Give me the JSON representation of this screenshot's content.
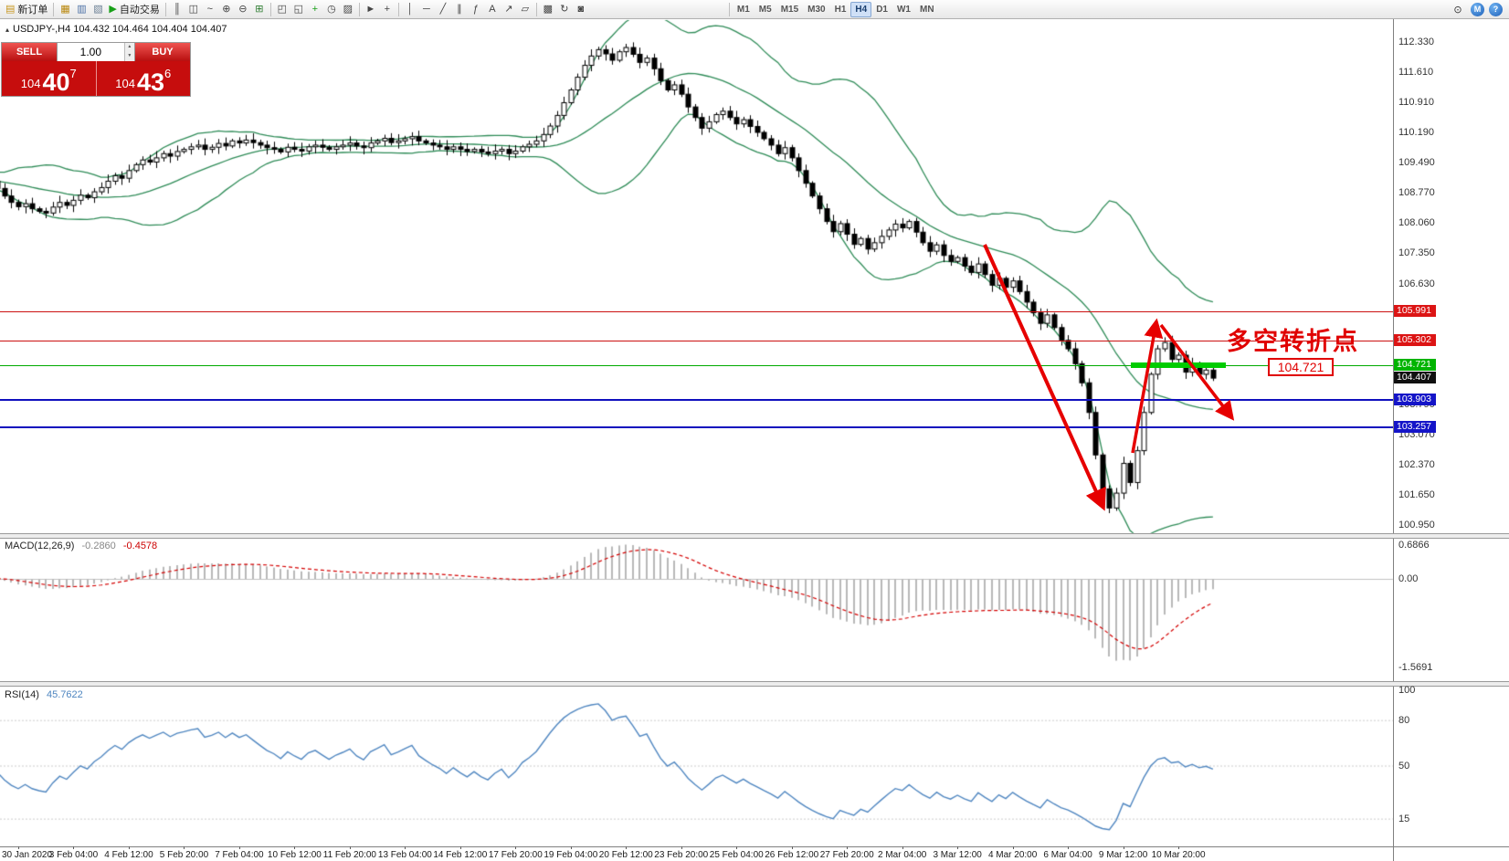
{
  "toolbar": {
    "groups": [
      {
        "name": "orders",
        "items": [
          {
            "name": "new-order",
            "glyph": "▤",
            "label": "新订单",
            "color": "#c8961e"
          }
        ]
      },
      {
        "name": "panels",
        "items": [
          {
            "name": "market-watch",
            "glyph": "▦",
            "color": "#b8860b"
          },
          {
            "name": "data-window",
            "glyph": "▥",
            "color": "#4a6fa5"
          },
          {
            "name": "navigator",
            "glyph": "▧",
            "color": "#6a7f94"
          },
          {
            "name": "autotrade",
            "glyph": "▶",
            "label": "自动交易",
            "color": "#18a018"
          }
        ]
      },
      {
        "name": "chart-type",
        "items": [
          {
            "name": "bars-chart",
            "glyph": "║",
            "color": "#444"
          },
          {
            "name": "candles-chart",
            "glyph": "◫",
            "color": "#444"
          },
          {
            "name": "line-chart",
            "glyph": "~",
            "color": "#444"
          },
          {
            "name": "zoom-in",
            "glyph": "⊕",
            "color": "#444"
          },
          {
            "name": "zoom-out",
            "glyph": "⊖",
            "color": "#444"
          },
          {
            "name": "tile-windows",
            "glyph": "⊞",
            "color": "#2f7d32"
          }
        ]
      },
      {
        "name": "chart-manage",
        "items": [
          {
            "name": "new-chart",
            "glyph": "◰",
            "color": "#444"
          },
          {
            "name": "chart-profiles",
            "glyph": "◱",
            "color": "#444"
          },
          {
            "name": "indicators-add",
            "glyph": "+",
            "color": "#18a018"
          },
          {
            "name": "period-selector",
            "glyph": "◷",
            "color": "#444"
          },
          {
            "name": "template",
            "glyph": "▨",
            "color": "#444"
          }
        ]
      },
      {
        "name": "cursor-tools",
        "items": [
          {
            "name": "cursor",
            "glyph": "►",
            "color": "#444"
          },
          {
            "name": "crosshair",
            "glyph": "+",
            "color": "#444"
          }
        ]
      },
      {
        "name": "line-studies",
        "items": [
          {
            "name": "vertical-line",
            "glyph": "│",
            "color": "#444"
          },
          {
            "name": "horizontal-line",
            "glyph": "─",
            "color": "#444"
          },
          {
            "name": "trendline",
            "glyph": "╱",
            "color": "#444"
          },
          {
            "name": "channel",
            "glyph": "∥",
            "color": "#444"
          },
          {
            "name": "fibonacci",
            "glyph": "ƒ",
            "color": "#444"
          },
          {
            "name": "text-tool",
            "glyph": "A",
            "color": "#444"
          },
          {
            "name": "arrows-tool",
            "glyph": "↗",
            "color": "#444"
          },
          {
            "name": "shapes-tool",
            "glyph": "▱",
            "color": "#444"
          }
        ]
      },
      {
        "name": "extra",
        "items": [
          {
            "name": "objects-list",
            "glyph": "▩",
            "color": "#444"
          },
          {
            "name": "refresh",
            "glyph": "↻",
            "color": "#444"
          },
          {
            "name": "snapshot",
            "glyph": "◙",
            "color": "#444"
          }
        ]
      }
    ],
    "timeframes": {
      "items": [
        "M1",
        "M5",
        "M15",
        "M30",
        "H1",
        "H4",
        "D1",
        "W1",
        "MN"
      ],
      "active": "H4"
    },
    "right_icons": [
      {
        "name": "search",
        "glyph": "⊙"
      },
      {
        "name": "community",
        "glyph": "M"
      },
      {
        "name": "help",
        "glyph": "?"
      }
    ]
  },
  "symbol_info": {
    "text": "USDJPY-,H4 104.432 104.464 104.404 104.407"
  },
  "one_click": {
    "sell_label": "SELL",
    "buy_label": "BUY",
    "volume": "1.00",
    "sell_price": {
      "main": "104",
      "pips": "40",
      "sup": "7"
    },
    "buy_price": {
      "main": "104",
      "pips": "43",
      "sup": "6"
    }
  },
  "indicator_labels": {
    "macd_name": "MACD(12,26,9)",
    "macd_value": "-0.2860",
    "macd_signal": "-0.4578",
    "rsi_name": "RSI(14)",
    "rsi_value": "45.7622"
  },
  "annotations": {
    "turning_point": "多空转折点",
    "level_tag": "104.721"
  },
  "axis": {
    "price_ticks": [
      "112.330",
      "111.610",
      "110.910",
      "110.190",
      "109.490",
      "108.770",
      "108.060",
      "107.350",
      "106.630",
      "103.790",
      "103.070",
      "102.370",
      "101.650",
      "100.950"
    ],
    "price_badges": [
      {
        "text": "105.991",
        "value": 105.991,
        "color": "#dc1414"
      },
      {
        "text": "105.302",
        "value": 105.302,
        "color": "#dc1414"
      },
      {
        "text": "104.721",
        "value": 104.721,
        "color": "#00b400"
      },
      {
        "text": "104.407",
        "value": 104.407,
        "color": "#101010"
      },
      {
        "text": "103.903",
        "value": 103.903,
        "color": "#1414c8"
      },
      {
        "text": "103.257",
        "value": 103.257,
        "color": "#1414c8"
      }
    ],
    "macd_ticks": [
      "0.6866",
      "0.00",
      "-1.5691"
    ],
    "rsi_ticks": [
      "100",
      "80",
      "50",
      "15"
    ],
    "time_labels": [
      {
        "text": "30 Jan 2020",
        "i": 4
      },
      {
        "text": "3 Feb 04:00",
        "i": 12
      },
      {
        "text": "4 Feb 12:00",
        "i": 20
      },
      {
        "text": "5 Feb 20:00",
        "i": 28
      },
      {
        "text": "7 Feb 04:00",
        "i": 36
      },
      {
        "text": "10 Feb 12:00",
        "i": 44
      },
      {
        "text": "11 Feb 20:00",
        "i": 52
      },
      {
        "text": "13 Feb 04:00",
        "i": 60
      },
      {
        "text": "14 Feb 12:00",
        "i": 68
      },
      {
        "text": "17 Feb 20:00",
        "i": 76
      },
      {
        "text": "19 Feb 04:00",
        "i": 84
      },
      {
        "text": "20 Feb 12:00",
        "i": 92
      },
      {
        "text": "23 Feb 20:00",
        "i": 100
      },
      {
        "text": "25 Feb 04:00",
        "i": 108
      },
      {
        "text": "26 Feb 12:00",
        "i": 116
      },
      {
        "text": "27 Feb 20:00",
        "i": 124
      },
      {
        "text": "2 Mar 04:00",
        "i": 132
      },
      {
        "text": "3 Mar 12:00",
        "i": 140
      },
      {
        "text": "4 Mar 20:00",
        "i": 148
      },
      {
        "text": "6 Mar 04:00",
        "i": 156
      },
      {
        "text": "9 Mar 12:00",
        "i": 164
      },
      {
        "text": "10 Mar 20:00",
        "i": 172
      }
    ]
  },
  "levels": [
    {
      "value": 105.991,
      "color": "#cc1111",
      "height": 1
    },
    {
      "value": 105.302,
      "color": "#cc1111",
      "height": 1
    },
    {
      "value": 104.721,
      "color": "#00aa00",
      "height": 1
    },
    {
      "value": 103.903,
      "color": "#0f0fbe",
      "height": 2
    },
    {
      "value": 103.257,
      "color": "#0f0fbe",
      "height": 2
    }
  ],
  "chart_data": {
    "type": "candlestick",
    "symbol": "USDJPY-",
    "timeframe": "H4",
    "price_axis_range": [
      100.95,
      112.33
    ],
    "warmup_closes": [
      109.0,
      109.12,
      109.25,
      109.1,
      108.95,
      109.05,
      109.18,
      109.02,
      108.9,
      108.98,
      109.1,
      109.22,
      109.08,
      108.92,
      109.0,
      109.12,
      109.2,
      109.05,
      108.95,
      109.02
    ],
    "closes": [
      109.05,
      108.88,
      108.7,
      108.55,
      108.45,
      108.52,
      108.4,
      108.34,
      108.3,
      108.44,
      108.55,
      108.48,
      108.6,
      108.72,
      108.66,
      108.8,
      108.9,
      109.05,
      109.18,
      109.12,
      109.3,
      109.44,
      109.55,
      109.5,
      109.6,
      109.7,
      109.64,
      109.75,
      109.8,
      109.86,
      109.9,
      109.8,
      109.85,
      109.94,
      109.88,
      110.0,
      109.95,
      110.02,
      109.96,
      109.9,
      109.84,
      109.8,
      109.74,
      109.85,
      109.8,
      109.76,
      109.86,
      109.9,
      109.85,
      109.8,
      109.86,
      109.9,
      109.95,
      109.88,
      109.84,
      109.95,
      110.0,
      110.06,
      109.96,
      110.0,
      110.05,
      110.1,
      110.0,
      109.95,
      109.9,
      109.86,
      109.8,
      109.86,
      109.8,
      109.75,
      109.8,
      109.74,
      109.7,
      109.76,
      109.8,
      109.7,
      109.76,
      109.86,
      109.92,
      110.0,
      110.15,
      110.35,
      110.6,
      110.9,
      111.2,
      111.5,
      111.78,
      112.0,
      112.15,
      112.05,
      111.9,
      112.1,
      112.2,
      112.04,
      111.85,
      111.95,
      111.7,
      111.42,
      111.2,
      111.32,
      111.1,
      110.8,
      110.55,
      110.3,
      110.45,
      110.62,
      110.7,
      110.55,
      110.4,
      110.5,
      110.34,
      110.2,
      110.05,
      109.9,
      109.7,
      109.84,
      109.6,
      109.3,
      109.0,
      108.7,
      108.4,
      108.1,
      107.86,
      108.05,
      107.8,
      107.56,
      107.7,
      107.45,
      107.6,
      107.75,
      107.9,
      108.04,
      107.95,
      108.1,
      107.85,
      107.6,
      107.4,
      107.55,
      107.3,
      107.16,
      107.25,
      107.05,
      106.9,
      107.1,
      106.85,
      106.6,
      106.76,
      106.55,
      106.7,
      106.45,
      106.2,
      105.95,
      105.7,
      105.9,
      105.6,
      105.3,
      105.1,
      104.75,
      104.3,
      103.6,
      102.6,
      101.8,
      101.35,
      101.7,
      102.4,
      101.95,
      102.7,
      103.6,
      104.5,
      105.1,
      105.25,
      104.85,
      104.95,
      104.55,
      104.75,
      104.5,
      104.6,
      104.41
    ],
    "overlays": {
      "bollinger": {
        "period": 20,
        "deviation": 2,
        "color": "#2e8b57"
      }
    },
    "macd": {
      "fast": 12,
      "slow": 26,
      "signal": 9,
      "current": "-0.2860",
      "current_signal": "-0.4578",
      "axis_labels": [
        0.6866,
        0.0,
        -1.5691
      ]
    },
    "rsi": {
      "period": 14,
      "current": "45.7622",
      "levels": [
        100,
        80,
        50,
        15
      ]
    }
  }
}
